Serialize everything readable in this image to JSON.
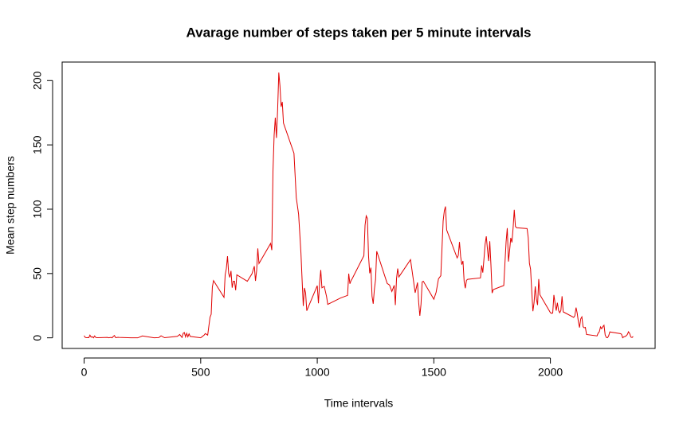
{
  "chart_data": {
    "type": "line",
    "title": "Avarage number of steps taken per 5 minute intervals",
    "x_label": "Time intervals",
    "y_label": "Mean step numbers",
    "color": "#e00000",
    "xlim": [
      -94.2,
      2449.2
    ],
    "ylim": [
      -8.25,
      214.4
    ],
    "xticks": [
      0,
      500,
      1000,
      1500,
      2000
    ],
    "yticks": [
      0,
      50,
      100,
      150,
      200
    ],
    "x": [
      0,
      5,
      10,
      15,
      20,
      25,
      30,
      35,
      40,
      45,
      50,
      55,
      100,
      105,
      110,
      115,
      120,
      125,
      130,
      135,
      140,
      145,
      150,
      200,
      230,
      250,
      300,
      320,
      330,
      345,
      400,
      410,
      420,
      425,
      430,
      435,
      440,
      445,
      450,
      455,
      500,
      515,
      520,
      530,
      540,
      545,
      550,
      555,
      600,
      605,
      610,
      615,
      620,
      625,
      630,
      635,
      640,
      645,
      650,
      655,
      700,
      720,
      730,
      735,
      740,
      745,
      750,
      800,
      805,
      810,
      815,
      820,
      825,
      830,
      835,
      840,
      845,
      850,
      855,
      900,
      910,
      920,
      930,
      935,
      940,
      945,
      950,
      955,
      1000,
      1005,
      1010,
      1015,
      1020,
      1030,
      1040,
      1045,
      1100,
      1130,
      1135,
      1140,
      1145,
      1150,
      1200,
      1205,
      1210,
      1215,
      1220,
      1225,
      1230,
      1235,
      1240,
      1245,
      1250,
      1255,
      1300,
      1310,
      1320,
      1330,
      1335,
      1340,
      1345,
      1350,
      1400,
      1420,
      1430,
      1435,
      1440,
      1445,
      1450,
      1455,
      1500,
      1510,
      1520,
      1530,
      1540,
      1545,
      1550,
      1555,
      1600,
      1605,
      1610,
      1615,
      1620,
      1625,
      1630,
      1635,
      1640,
      1645,
      1700,
      1705,
      1710,
      1715,
      1720,
      1725,
      1730,
      1735,
      1740,
      1745,
      1750,
      1755,
      1800,
      1805,
      1810,
      1815,
      1820,
      1825,
      1830,
      1835,
      1840,
      1845,
      1850,
      1855,
      1900,
      1905,
      1910,
      1915,
      1920,
      1925,
      1930,
      1935,
      1940,
      1945,
      1950,
      1955,
      2000,
      2005,
      2010,
      2015,
      2020,
      2025,
      2030,
      2035,
      2040,
      2045,
      2050,
      2055,
      2100,
      2105,
      2110,
      2115,
      2120,
      2125,
      2130,
      2135,
      2140,
      2145,
      2150,
      2155,
      2200,
      2205,
      2210,
      2215,
      2220,
      2225,
      2230,
      2235,
      2240,
      2245,
      2250,
      2255,
      2300,
      2305,
      2310,
      2315,
      2320,
      2325,
      2330,
      2335,
      2340,
      2345,
      2350,
      2355
    ],
    "values": [
      1.7,
      0.3,
      0.1,
      0.2,
      0.1,
      2.1,
      0.5,
      0.9,
      0,
      1.5,
      0.3,
      0.1,
      0.3,
      0,
      0.2,
      0.3,
      0,
      1.1,
      1.8,
      0.2,
      0.2,
      0.4,
      0.3,
      0,
      0,
      1.5,
      0,
      0.2,
      1.6,
      0.1,
      1.2,
      2.6,
      0.3,
      3.5,
      4.1,
      0.7,
      3.5,
      0.8,
      3.1,
      1.1,
      0,
      2.2,
      3.3,
      2.1,
      16,
      18.3,
      39.5,
      44.5,
      31.5,
      49,
      53.8,
      63.5,
      50,
      47,
      52,
      39,
      44,
      44,
      37,
      49,
      44,
      49.8,
      55.7,
      44.3,
      52.3,
      69.5,
      57.8,
      73.4,
      68.2,
      129.4,
      157.5,
      171.2,
      155.4,
      177.3,
      206.2,
      195.9,
      179.6,
      183.4,
      167,
      143.5,
      109,
      96,
      66,
      45,
      24.8,
      38.8,
      34.9,
      21.1,
      40.6,
      26.9,
      42.3,
      52.7,
      38.9,
      40,
      32,
      26,
      31,
      33,
      49.9,
      42,
      44.6,
      46,
      63.9,
      87.6,
      94.8,
      92.8,
      63.4,
      50.2,
      54.5,
      32.4,
      26.5,
      37.7,
      45.1,
      67.3,
      42.3,
      41,
      36,
      40.8,
      25.5,
      46,
      53.9,
      47.3,
      60.8,
      35,
      43,
      27.5,
      17.1,
      26.1,
      43.5,
      44,
      30,
      35.5,
      45.9,
      48.3,
      91,
      98.7,
      102.1,
      83.9,
      62.1,
      64.1,
      74.5,
      63.2,
      56.9,
      59.8,
      43.9,
      38.6,
      44.7,
      45.5,
      46.6,
      56.3,
      50.7,
      61.2,
      72.7,
      78.9,
      68.9,
      59.7,
      75.1,
      56.5,
      34.8,
      37.5,
      40.7,
      58,
      74.7,
      85.3,
      59.3,
      67.8,
      77.7,
      74.2,
      85.3,
      99.5,
      86.6,
      85.6,
      84.9,
      77.8,
      58,
      53.4,
      36.3,
      20.7,
      27.4,
      40,
      30.2,
      25.5,
      45.7,
      33.5,
      19.6,
      19,
      19.3,
      33.3,
      26.8,
      21.2,
      27.3,
      21.3,
      19.5,
      21.3,
      32.3,
      20.2,
      15.9,
      17.2,
      23.5,
      19.2,
      12.5,
      8,
      14.7,
      16.3,
      8.7,
      7.8,
      8.1,
      2.6,
      1.5,
      3.7,
      4.8,
      8.5,
      7.1,
      8.7,
      9.8,
      2.2,
      0.3,
      0.1,
      1.6,
      4.6,
      3.3,
      2.8,
      0,
      0.8,
      1,
      1.6,
      2.6,
      4.7,
      3.3,
      0.6,
      0.2,
      1.1
    ]
  }
}
